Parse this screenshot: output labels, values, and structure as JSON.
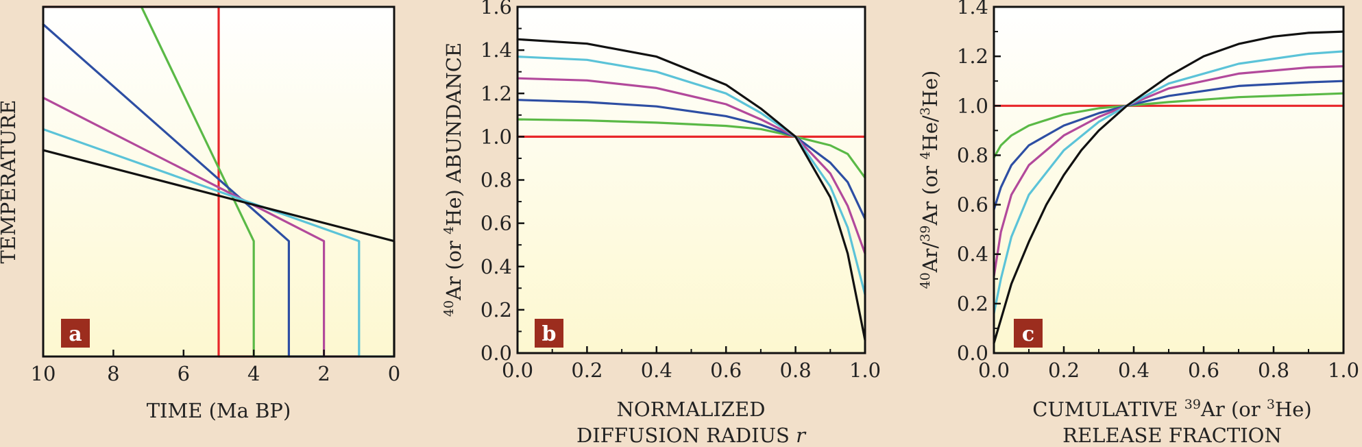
{
  "colors": {
    "background": "#f2e0ca",
    "panel_top": "#ffffff",
    "panel_bottom": "#fdf8d0",
    "badge": "#9c2d1e",
    "series": {
      "red": "#e8262a",
      "green": "#5ab946",
      "blue": "#2d4ea3",
      "magenta": "#b2499b",
      "cyan": "#5bc3d8",
      "black": "#111111"
    }
  },
  "panels": [
    {
      "badge": "a"
    },
    {
      "badge": "b"
    },
    {
      "badge": "c"
    }
  ],
  "chart_data": [
    {
      "type": "line",
      "panel": "a",
      "ylabel": "TEMPERATURE",
      "xlabel": "TIME (Ma BP)",
      "xlim": [
        10,
        0
      ],
      "ylim": [
        0,
        1
      ],
      "xticks": [
        "10",
        "8",
        "6",
        "4",
        "2",
        "0"
      ],
      "grid": false,
      "series": [
        {
          "color": "red",
          "points": [
            [
              10,
              1.0
            ],
            [
              5,
              1.0
            ],
            [
              5,
              0.0
            ],
            [
              4,
              0.0
            ]
          ]
        },
        {
          "color": "green",
          "points": [
            [
              7.2,
              1.0
            ],
            [
              4,
              0.33
            ],
            [
              4,
              0.0
            ],
            [
              3,
              0.0
            ]
          ]
        },
        {
          "color": "blue",
          "points": [
            [
              10,
              0.95
            ],
            [
              3,
              0.33
            ],
            [
              3,
              0.0
            ],
            [
              2,
              0.0
            ]
          ]
        },
        {
          "color": "magenta",
          "points": [
            [
              10,
              0.74
            ],
            [
              2,
              0.33
            ],
            [
              2,
              0.0
            ],
            [
              1,
              0.0
            ]
          ]
        },
        {
          "color": "cyan",
          "points": [
            [
              10,
              0.65
            ],
            [
              1,
              0.33
            ],
            [
              1,
              0.0
            ],
            [
              0,
              0.0
            ]
          ]
        },
        {
          "color": "black",
          "points": [
            [
              10,
              0.59
            ],
            [
              0,
              0.33
            ],
            [
              0,
              0.0
            ]
          ]
        }
      ]
    },
    {
      "type": "line",
      "panel": "b",
      "ylabel_parts": [
        "40",
        "Ar (or ",
        "4",
        "He) ABUNDANCE"
      ],
      "xlabel_lines": [
        "NORMALIZED",
        "DIFFUSION RADIUS "
      ],
      "xlabel_italic": "r",
      "xlim": [
        0,
        1
      ],
      "ylim": [
        0,
        1.6
      ],
      "xticks": [
        "0.0",
        "0.2",
        "0.4",
        "0.6",
        "0.8",
        "1.0"
      ],
      "yticks": [
        "0.0",
        "0.2",
        "0.4",
        "0.6",
        "0.8",
        "1.0",
        "1.2",
        "1.4",
        "1.6"
      ],
      "grid": false,
      "series": [
        {
          "color": "red",
          "x": [
            0,
            0.2,
            0.4,
            0.6,
            0.8,
            1.0
          ],
          "y": [
            1.0,
            1.0,
            1.0,
            1.0,
            1.0,
            1.0
          ]
        },
        {
          "color": "green",
          "x": [
            0,
            0.2,
            0.4,
            0.6,
            0.7,
            0.8,
            0.9,
            0.95,
            1.0
          ],
          "y": [
            1.08,
            1.075,
            1.065,
            1.05,
            1.035,
            1.0,
            0.96,
            0.92,
            0.81
          ]
        },
        {
          "color": "blue",
          "x": [
            0,
            0.2,
            0.4,
            0.6,
            0.7,
            0.8,
            0.9,
            0.95,
            1.0
          ],
          "y": [
            1.17,
            1.16,
            1.14,
            1.095,
            1.055,
            1.0,
            0.88,
            0.79,
            0.62
          ]
        },
        {
          "color": "magenta",
          "x": [
            0,
            0.2,
            0.4,
            0.6,
            0.7,
            0.8,
            0.9,
            0.95,
            1.0
          ],
          "y": [
            1.27,
            1.26,
            1.225,
            1.15,
            1.08,
            1.0,
            0.83,
            0.68,
            0.46
          ]
        },
        {
          "color": "cyan",
          "x": [
            0,
            0.2,
            0.4,
            0.6,
            0.7,
            0.8,
            0.9,
            0.95,
            1.0
          ],
          "y": [
            1.37,
            1.355,
            1.3,
            1.2,
            1.11,
            1.0,
            0.77,
            0.58,
            0.27
          ]
        },
        {
          "color": "black",
          "x": [
            0,
            0.2,
            0.4,
            0.6,
            0.7,
            0.8,
            0.9,
            0.95,
            1.0
          ],
          "y": [
            1.45,
            1.43,
            1.37,
            1.24,
            1.13,
            1.0,
            0.72,
            0.46,
            0.06
          ]
        }
      ]
    },
    {
      "type": "line",
      "panel": "c",
      "ylabel_parts": [
        "40",
        "Ar/",
        "39",
        "Ar (or ",
        "4",
        "He/",
        "3",
        "He)"
      ],
      "xlabel_parts": [
        "CUMULATIVE ",
        "39",
        "Ar (or ",
        "3",
        "He)"
      ],
      "xlabel_line2": "RELEASE FRACTION",
      "xlim": [
        0,
        1
      ],
      "ylim": [
        0,
        1.4
      ],
      "xticks": [
        "0.0",
        "0.2",
        "0.4",
        "0.6",
        "0.8",
        "1.0"
      ],
      "yticks": [
        "0.0",
        "0.2",
        "0.4",
        "0.6",
        "0.8",
        "1.0",
        "1.2",
        "1.4"
      ],
      "grid": false,
      "series": [
        {
          "color": "red",
          "x": [
            0,
            0.2,
            0.4,
            0.6,
            0.8,
            1.0
          ],
          "y": [
            1.0,
            1.0,
            1.0,
            1.0,
            1.0,
            1.0
          ]
        },
        {
          "color": "green",
          "x": [
            0,
            0.02,
            0.05,
            0.1,
            0.2,
            0.3,
            0.38,
            0.5,
            0.7,
            1.0
          ],
          "y": [
            0.79,
            0.84,
            0.88,
            0.92,
            0.965,
            0.99,
            1.0,
            1.015,
            1.035,
            1.05
          ]
        },
        {
          "color": "blue",
          "x": [
            0,
            0.02,
            0.05,
            0.1,
            0.2,
            0.3,
            0.38,
            0.5,
            0.7,
            0.9,
            1.0
          ],
          "y": [
            0.58,
            0.67,
            0.76,
            0.84,
            0.92,
            0.97,
            1.0,
            1.04,
            1.08,
            1.095,
            1.1
          ]
        },
        {
          "color": "magenta",
          "x": [
            0,
            0.02,
            0.05,
            0.1,
            0.2,
            0.3,
            0.38,
            0.5,
            0.7,
            0.9,
            1.0
          ],
          "y": [
            0.31,
            0.49,
            0.64,
            0.76,
            0.88,
            0.955,
            1.0,
            1.07,
            1.13,
            1.155,
            1.16
          ]
        },
        {
          "color": "cyan",
          "x": [
            0,
            0.02,
            0.05,
            0.1,
            0.2,
            0.3,
            0.38,
            0.5,
            0.7,
            0.9,
            1.0
          ],
          "y": [
            0.16,
            0.3,
            0.47,
            0.64,
            0.82,
            0.935,
            1.0,
            1.09,
            1.17,
            1.21,
            1.22
          ]
        },
        {
          "color": "black",
          "x": [
            0,
            0.05,
            0.1,
            0.15,
            0.2,
            0.25,
            0.3,
            0.38,
            0.5,
            0.6,
            0.7,
            0.8,
            0.9,
            1.0
          ],
          "y": [
            0.04,
            0.28,
            0.45,
            0.6,
            0.72,
            0.82,
            0.9,
            1.0,
            1.12,
            1.2,
            1.25,
            1.28,
            1.295,
            1.3
          ]
        }
      ]
    }
  ]
}
